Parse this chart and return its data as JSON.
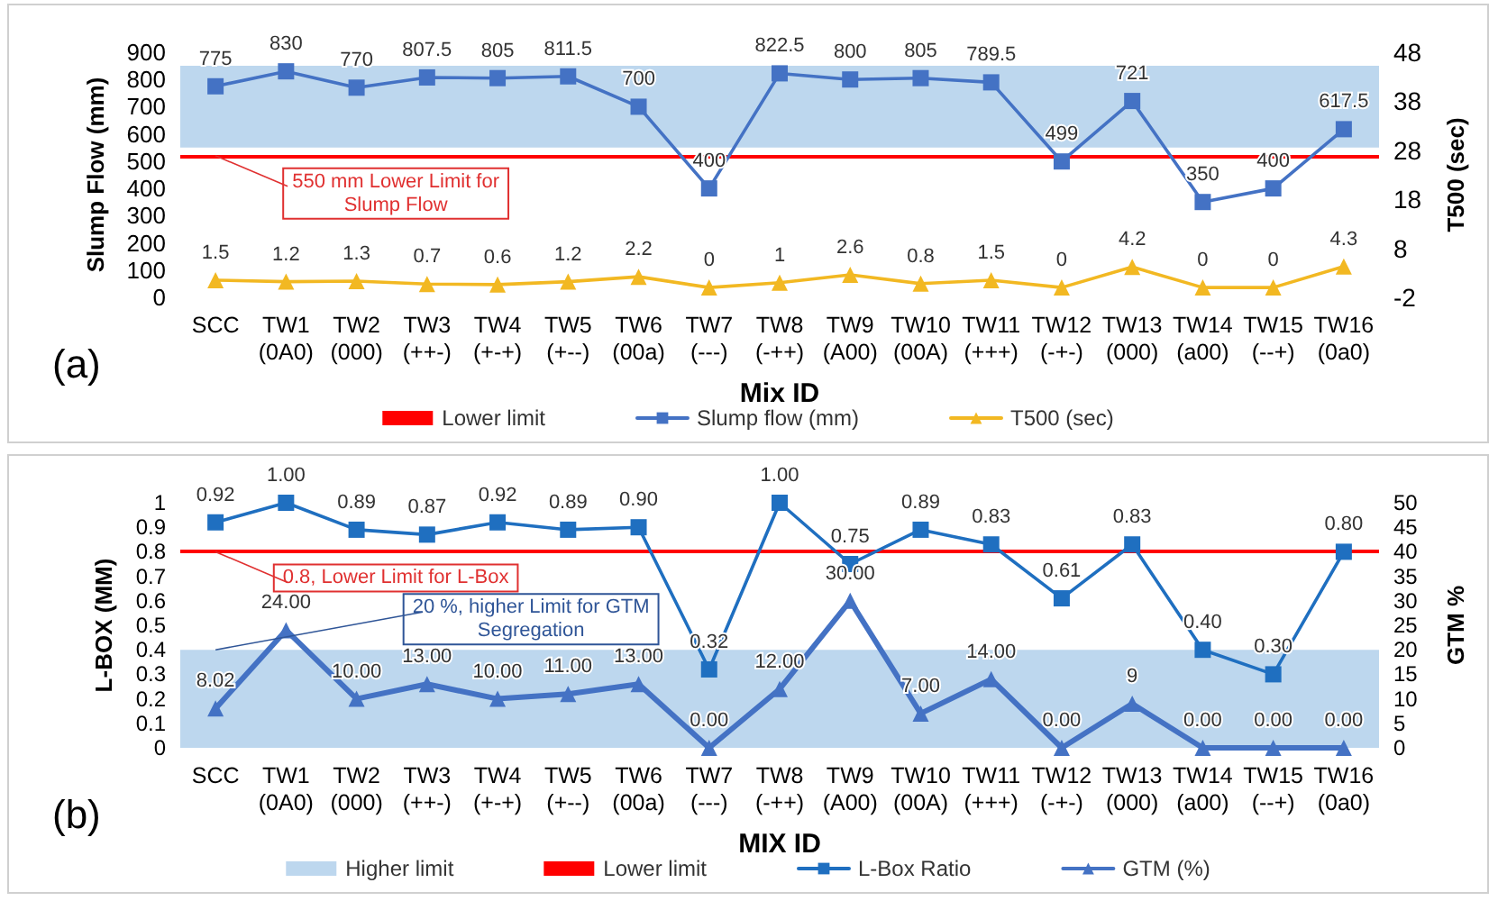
{
  "chart_data": [
    {
      "type": "line",
      "xlabel": "Mix ID",
      "ylabel": "Slump Flow (mm)",
      "y2label": "T500 (sec)",
      "categories": [
        "SCC",
        "TW1\n(0A0)",
        "TW2\n(000)",
        "TW3\n(++-)",
        "TW4\n(+-+)",
        "TW5\n(+--)",
        "TW6\n(00a)",
        "TW7\n(---)",
        "TW8\n(-++)",
        "TW9\n(A00)",
        "TW10\n(00A)",
        "TW11\n(+++)",
        "TW12\n(-+-)",
        "TW13\n(000)",
        "TW14\n(a00)",
        "TW15\n(--+)",
        "TW16\n(0a0)"
      ],
      "series": [
        {
          "name": "Slump flow (mm)",
          "color": "#4472c4",
          "marker": "square",
          "values": [
            775,
            830,
            770,
            807.5,
            805,
            811.5,
            700,
            400,
            822.5,
            800,
            805,
            789.5,
            499,
            721,
            350,
            400,
            617.5
          ]
        },
        {
          "name": "T500 (sec)",
          "color": "#f2b822",
          "marker": "triangle",
          "axis": "y2",
          "values": [
            1.5,
            1.2,
            1.3,
            0.7,
            0.6,
            1.2,
            2.2,
            0,
            1,
            2.6,
            0.8,
            1.5,
            0,
            4.2,
            0,
            0,
            4.3
          ]
        }
      ],
      "ylim": [
        0,
        900
      ],
      "yticks": [
        0,
        100,
        200,
        300,
        400,
        500,
        600,
        700,
        800,
        900
      ],
      "y2lim": [
        -2,
        48
      ],
      "y2ticks": [
        -2,
        8,
        18,
        28,
        38,
        48
      ],
      "ref_lines": [
        {
          "axis": "y",
          "value": 520,
          "label": "Lower limit",
          "color": "#ff0000"
        }
      ],
      "bands": [
        {
          "axis": "y",
          "from": 550,
          "to": 850,
          "color": "#bdd7ee"
        }
      ],
      "annotations": [
        {
          "text": "550 mm Lower Limit for\nSlump Flow",
          "x": "SCC",
          "y": 520
        },
        "(a)"
      ],
      "data_labels": true,
      "legend": "bottom"
    },
    {
      "type": "line",
      "xlabel": "MIX ID",
      "ylabel": "L-BOX (MM)",
      "y2label": "GTM %",
      "categories": [
        "SCC",
        "TW1\n(0A0)",
        "TW2\n(000)",
        "TW3\n(++-)",
        "TW4\n(+-+)",
        "TW5\n(+--)",
        "TW6\n(00a)",
        "TW7\n(---)",
        "TW8\n(-++)",
        "TW9\n(A00)",
        "TW10\n(00A)",
        "TW11\n(+++)",
        "TW12\n(-+-)",
        "TW13\n(000)",
        "TW14\n(a00)",
        "TW15\n(--+)",
        "TW16\n(0a0)"
      ],
      "series": [
        {
          "name": "L-Box Ratio",
          "color": "#1f6fc0",
          "marker": "square",
          "values": [
            0.92,
            1.0,
            0.89,
            0.87,
            0.92,
            0.89,
            0.9,
            0.32,
            1.0,
            0.75,
            0.89,
            0.83,
            0.61,
            0.83,
            0.4,
            0.3,
            0.8
          ],
          "value_labels": [
            "0.92",
            "1.00",
            "0.89",
            "0.87",
            "0.92",
            "0.89",
            "0.90",
            "0.32",
            "1.00",
            "0.75",
            "0.89",
            "0.83",
            "0.61",
            "0.83",
            "0.40",
            "0.30",
            "0.80"
          ]
        },
        {
          "name": "GTM (%)",
          "color": "#4472c4",
          "marker": "triangle",
          "axis": "y2",
          "values": [
            8.02,
            24,
            10,
            13,
            10,
            11,
            13,
            0,
            12,
            30,
            7,
            14,
            0,
            9,
            0,
            0,
            0
          ],
          "value_labels": [
            "8.02",
            "24.00",
            "10.00",
            "13.00",
            "10.00",
            "11.00",
            "13.00",
            "0.00",
            "12.00",
            "30.00",
            "7.00",
            "14.00",
            "0.00",
            "9",
            "0.00",
            "0.00",
            "0.00"
          ]
        }
      ],
      "ylim": [
        0,
        1
      ],
      "yticks": [
        0,
        0.1,
        0.2,
        0.3,
        0.4,
        0.5,
        0.6,
        0.7,
        0.8,
        0.9,
        1
      ],
      "y2lim": [
        0,
        50
      ],
      "y2ticks": [
        0,
        5,
        10,
        15,
        20,
        25,
        30,
        35,
        40,
        45,
        50
      ],
      "ref_lines": [
        {
          "axis": "y",
          "value": 0.8,
          "label": "Lower limit",
          "color": "#ff0000"
        }
      ],
      "bands": [
        {
          "axis": "y2",
          "from": 0,
          "to": 20,
          "label": "Higher limit",
          "color": "#bdd7ee"
        }
      ],
      "annotations": [
        {
          "text": "0.8, Lower Limit for L-Box",
          "x": "SCC",
          "y": 0.8
        },
        {
          "text": "20 %, higher Limit for GTM\nSegregation",
          "x": "SCC",
          "y": 0.4
        },
        "(b)"
      ],
      "legend": "bottom"
    }
  ]
}
